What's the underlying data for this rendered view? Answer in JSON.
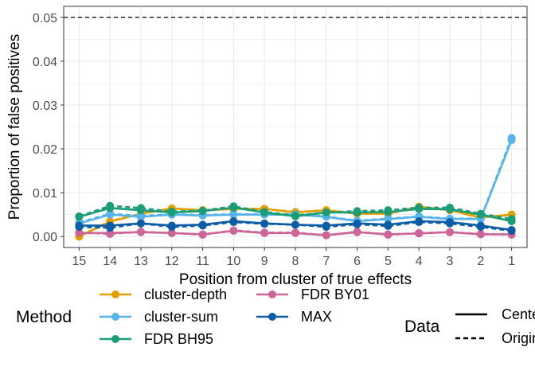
{
  "chart_data": {
    "type": "line",
    "xlabel": "Position from cluster of true effects",
    "ylabel": "Proportion of false positives",
    "x": [
      15,
      14,
      13,
      12,
      11,
      10,
      9,
      8,
      7,
      6,
      5,
      4,
      3,
      2,
      1
    ],
    "x_reversed": true,
    "ylim": [
      -0.0025,
      0.0525
    ],
    "yticks": [
      0.0,
      0.01,
      0.02,
      0.03,
      0.04,
      0.05
    ],
    "ytick_labels": [
      "0.00",
      "0.01",
      "0.02",
      "0.03",
      "0.04",
      "0.05"
    ],
    "reference_line": {
      "y": 0.05,
      "style": "dashed",
      "color": "#000000"
    },
    "grid": true,
    "legend_position": "bottom",
    "legend": {
      "method_title": "Method",
      "data_title": "Data",
      "data_items": [
        {
          "label": "Centered",
          "style": "solid"
        },
        {
          "label": "Original",
          "style": "dashed"
        }
      ]
    },
    "series": [
      {
        "name": "cluster-depth",
        "color": "#E69F00",
        "data": "Centered",
        "values": [
          0.0,
          0.0034,
          0.0052,
          0.0064,
          0.006,
          0.0063,
          0.0063,
          0.0055,
          0.006,
          0.0052,
          0.0052,
          0.0068,
          0.006,
          0.0043,
          0.005
        ]
      },
      {
        "name": "cluster-depth",
        "color": "#E69F00",
        "data": "Original",
        "values": [
          0.0,
          0.0035,
          0.0052,
          0.0064,
          0.006,
          0.0063,
          0.0063,
          0.0056,
          0.006,
          0.0053,
          0.0052,
          0.0068,
          0.0061,
          0.0044,
          0.005
        ]
      },
      {
        "name": "cluster-sum",
        "color": "#56B4E9",
        "data": "Centered",
        "values": [
          0.003,
          0.005,
          0.0045,
          0.005,
          0.0048,
          0.005,
          0.005,
          0.005,
          0.0045,
          0.0035,
          0.004,
          0.0045,
          0.004,
          0.004,
          0.022
        ]
      },
      {
        "name": "cluster-sum",
        "color": "#56B4E9",
        "data": "Original",
        "values": [
          0.0032,
          0.0052,
          0.0047,
          0.0051,
          0.0049,
          0.0051,
          0.0051,
          0.0051,
          0.0046,
          0.0036,
          0.0041,
          0.0046,
          0.0041,
          0.0041,
          0.0225
        ]
      },
      {
        "name": "FDR BH95",
        "color": "#1B9E77",
        "data": "Centered",
        "values": [
          0.0045,
          0.0065,
          0.006,
          0.0055,
          0.0058,
          0.0066,
          0.0055,
          0.0046,
          0.0055,
          0.0055,
          0.0056,
          0.0063,
          0.0062,
          0.005,
          0.0035
        ]
      },
      {
        "name": "FDR BH95",
        "color": "#1B9E77",
        "data": "Original",
        "values": [
          0.0046,
          0.007,
          0.0065,
          0.0057,
          0.0059,
          0.0069,
          0.0056,
          0.0048,
          0.0055,
          0.0058,
          0.006,
          0.0066,
          0.0066,
          0.0052,
          0.004
        ]
      },
      {
        "name": "FDR BY01",
        "color": "#CC6699",
        "data": "Centered",
        "values": [
          0.0008,
          0.0008,
          0.001,
          0.0008,
          0.0005,
          0.0013,
          0.0008,
          0.0008,
          0.0003,
          0.001,
          0.0005,
          0.0007,
          0.001,
          0.0005,
          0.0005
        ]
      },
      {
        "name": "FDR BY01",
        "color": "#CC6699",
        "data": "Original",
        "values": [
          0.0009,
          0.0006,
          0.0011,
          0.0008,
          0.0004,
          0.0014,
          0.0009,
          0.0009,
          0.0003,
          0.0011,
          0.0004,
          0.0008,
          0.001,
          0.0006,
          0.0004
        ]
      },
      {
        "name": "MAX",
        "color": "#0C5DA5",
        "data": "Centered",
        "values": [
          0.0025,
          0.0025,
          0.003,
          0.0025,
          0.0027,
          0.0035,
          0.003,
          0.0027,
          0.0025,
          0.003,
          0.0027,
          0.0035,
          0.0033,
          0.0025,
          0.0015
        ]
      },
      {
        "name": "MAX",
        "color": "#0C5DA5",
        "data": "Original",
        "values": [
          0.0022,
          0.002,
          0.003,
          0.0022,
          0.0025,
          0.0033,
          0.0029,
          0.0027,
          0.0022,
          0.0028,
          0.0024,
          0.0033,
          0.003,
          0.0022,
          0.0013
        ]
      }
    ]
  }
}
